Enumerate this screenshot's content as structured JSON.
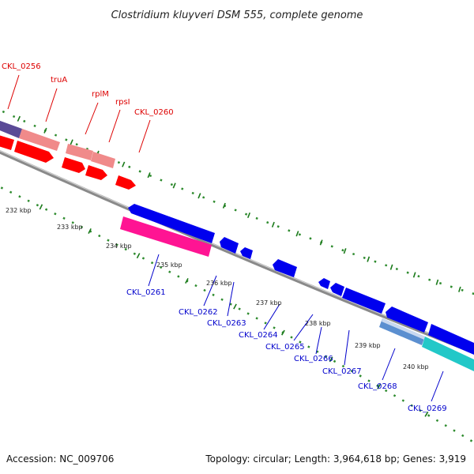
{
  "title": "Clostridium kluyveri DSM 555, complete genome",
  "accession": "Accession: NC_009706",
  "topology": "Topology: circular; Length: 3,964,618 bp; Genes: 3,919",
  "colors": {
    "forward_gene": "#ff0000",
    "forward_gene_light": "#f08a8a",
    "forward_label": "#dd0000",
    "reverse_gene": "#0000ee",
    "reverse_label": "#0000cc",
    "rna_gene": "#ff1493",
    "backbone": "#888888",
    "tick_mark": "#1a7a1a"
  },
  "forward_genes": [
    "CKL_0256",
    "truA",
    "rplM",
    "rpsI",
    "CKL_0260"
  ],
  "reverse_genes": [
    "CKL_0261",
    "CKL_0262",
    "CKL_0263",
    "CKL_0264",
    "CKL_0265",
    "CKL_0266",
    "CKL_0267",
    "CKL_0268",
    "CKL_0269"
  ],
  "kbp_ticks": [
    "232 kbp",
    "233 kbp",
    "234 kbp",
    "235 kbp",
    "236 kbp",
    "237 kbp",
    "238 kbp",
    "239 kbp",
    "240 kbp"
  ]
}
